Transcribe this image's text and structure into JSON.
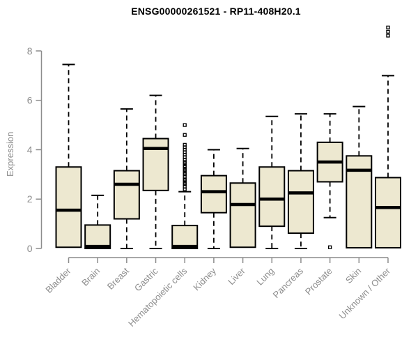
{
  "chart_data": {
    "type": "boxplot",
    "title": "ENSG00000261521 - RP11-408H20.1",
    "ylabel": "Expression",
    "xlabel": "",
    "ylim": [
      0,
      8
    ],
    "yticks": [
      0,
      2,
      4,
      6,
      8
    ],
    "grid": false,
    "legend": "none",
    "categories": [
      "Bladder",
      "Brain",
      "Breast",
      "Gastric",
      "Hematopoietic cells",
      "Kidney",
      "Liver",
      "Lung",
      "Pancreas",
      "Prostate",
      "Skin",
      "Unknown / Other"
    ],
    "boxes": [
      {
        "category": "Bladder",
        "whisker_low": 0,
        "q1": 0.05,
        "median": 1.55,
        "q3": 3.3,
        "whisker_high": 7.45,
        "outliers": []
      },
      {
        "category": "Brain",
        "whisker_low": 0,
        "q1": 0.0,
        "median": 0.08,
        "q3": 0.95,
        "whisker_high": 2.15,
        "outliers": []
      },
      {
        "category": "Breast",
        "whisker_low": 0,
        "q1": 1.2,
        "median": 2.6,
        "q3": 3.15,
        "whisker_high": 5.65,
        "outliers": []
      },
      {
        "category": "Gastric",
        "whisker_low": 0,
        "q1": 2.35,
        "median": 4.05,
        "q3": 4.45,
        "whisker_high": 6.2,
        "outliers": []
      },
      {
        "category": "Hematopoietic cells",
        "whisker_low": 0,
        "q1": 0.0,
        "median": 0.08,
        "q3": 0.93,
        "whisker_high": 2.3,
        "outliers": [
          2.4,
          2.5,
          2.6,
          2.65,
          2.75,
          2.8,
          2.9,
          3.0,
          3.05,
          3.15,
          3.2,
          3.3,
          3.35,
          3.45,
          3.5,
          3.6,
          3.7,
          3.8,
          3.9,
          4.0,
          4.1,
          4.2,
          4.6,
          5.0
        ]
      },
      {
        "category": "Kidney",
        "whisker_low": 0,
        "q1": 1.45,
        "median": 2.3,
        "q3": 2.95,
        "whisker_high": 4.0,
        "outliers": []
      },
      {
        "category": "Liver",
        "whisker_low": 0,
        "q1": 0.05,
        "median": 1.78,
        "q3": 2.65,
        "whisker_high": 4.05,
        "outliers": []
      },
      {
        "category": "Lung",
        "whisker_low": 0,
        "q1": 0.9,
        "median": 2.0,
        "q3": 3.3,
        "whisker_high": 5.35,
        "outliers": []
      },
      {
        "category": "Pancreas",
        "whisker_low": 0,
        "q1": 0.62,
        "median": 2.25,
        "q3": 3.15,
        "whisker_high": 5.45,
        "outliers": []
      },
      {
        "category": "Prostate",
        "whisker_low": 1.25,
        "q1": 2.7,
        "median": 3.5,
        "q3": 4.3,
        "whisker_high": 5.45,
        "outliers": [
          0.05
        ]
      },
      {
        "category": "Skin",
        "whisker_low": 0,
        "q1": 0.03,
        "median": 3.17,
        "q3": 3.75,
        "whisker_high": 5.75,
        "outliers": []
      },
      {
        "category": "Unknown / Other",
        "whisker_low": 0,
        "q1": 0.03,
        "median": 1.66,
        "q3": 2.87,
        "whisker_high": 7.0,
        "outliers": [
          8.62,
          8.78,
          8.95
        ]
      }
    ],
    "colors": {
      "box_fill": "#ede8d0",
      "box_border": "#000000",
      "median": "#000000",
      "whisker": "#000000",
      "axis": "#8c8c8c",
      "tick_label": "#8c8c8c",
      "title": "#000000",
      "background": "#ffffff"
    }
  }
}
